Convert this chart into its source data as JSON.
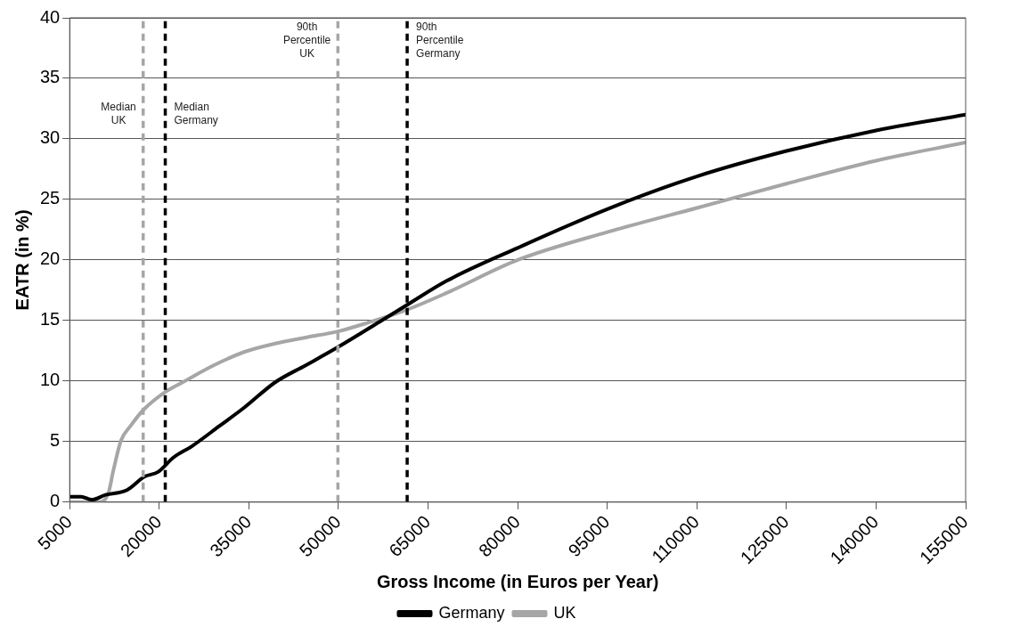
{
  "chart_data": {
    "type": "line",
    "xlabel": "Gross Income (in Euros per Year)",
    "ylabel": "EATR (in %)",
    "xlim": [
      5000,
      155000
    ],
    "xticks": [
      5000,
      20000,
      35000,
      50000,
      65000,
      80000,
      95000,
      110000,
      125000,
      140000,
      155000
    ],
    "ylim": [
      0,
      40
    ],
    "yticks": [
      0,
      5,
      10,
      15,
      20,
      25,
      30,
      35,
      40
    ],
    "grid": "y",
    "legend": "bottom",
    "marker": "none",
    "line_style": "solid",
    "series": [
      {
        "name": "Germany",
        "color": "#000000",
        "x": [
          5100,
          6900,
          8700,
          11000,
          14600,
          17500,
          19800,
          22400,
          25400,
          30100,
          34200,
          39400,
          44500,
          49900,
          56900,
          61500,
          68200,
          80000,
          95000,
          110000,
          125000,
          140000,
          155000
        ],
        "values": [
          0.45,
          0.45,
          0.2,
          0.6,
          1.0,
          2.1,
          2.5,
          3.7,
          4.6,
          6.3,
          7.8,
          9.9,
          11.3,
          12.8,
          14.9,
          16.3,
          18.3,
          21.0,
          24.2,
          26.9,
          29.0,
          30.7,
          32.0
        ]
      },
      {
        "name": "UK",
        "color": "#a6a6a6",
        "x": [
          5000,
          9900,
          11500,
          12300,
          13600,
          15200,
          17300,
          21000,
          23900,
          29100,
          34200,
          39400,
          44500,
          49900,
          54800,
          61500,
          68200,
          80000,
          95000,
          110000,
          125000,
          140000,
          155000
        ],
        "values": [
          0,
          0,
          0.8,
          2.6,
          5.1,
          6.3,
          7.6,
          9.1,
          9.9,
          11.3,
          12.4,
          13.1,
          13.6,
          14.1,
          14.8,
          15.9,
          17.3,
          20.0,
          22.3,
          24.3,
          26.3,
          28.2,
          29.7
        ]
      }
    ],
    "ref_lines": [
      {
        "axis": "x",
        "value": 17300,
        "label": "Median\nUK",
        "color": "#a6a6a6",
        "line_style": "dashed"
      },
      {
        "axis": "x",
        "value": 21000,
        "label": "Median\nGermany",
        "color": "#000000",
        "line_style": "dashed"
      },
      {
        "axis": "x",
        "value": 49900,
        "label": "90th\nPercentile\nUK",
        "color": "#a6a6a6",
        "line_style": "dashed"
      },
      {
        "axis": "x",
        "value": 61500,
        "label": "90th\nPercentile\nGermany",
        "color": "#000000",
        "line_style": "dashed"
      }
    ]
  }
}
